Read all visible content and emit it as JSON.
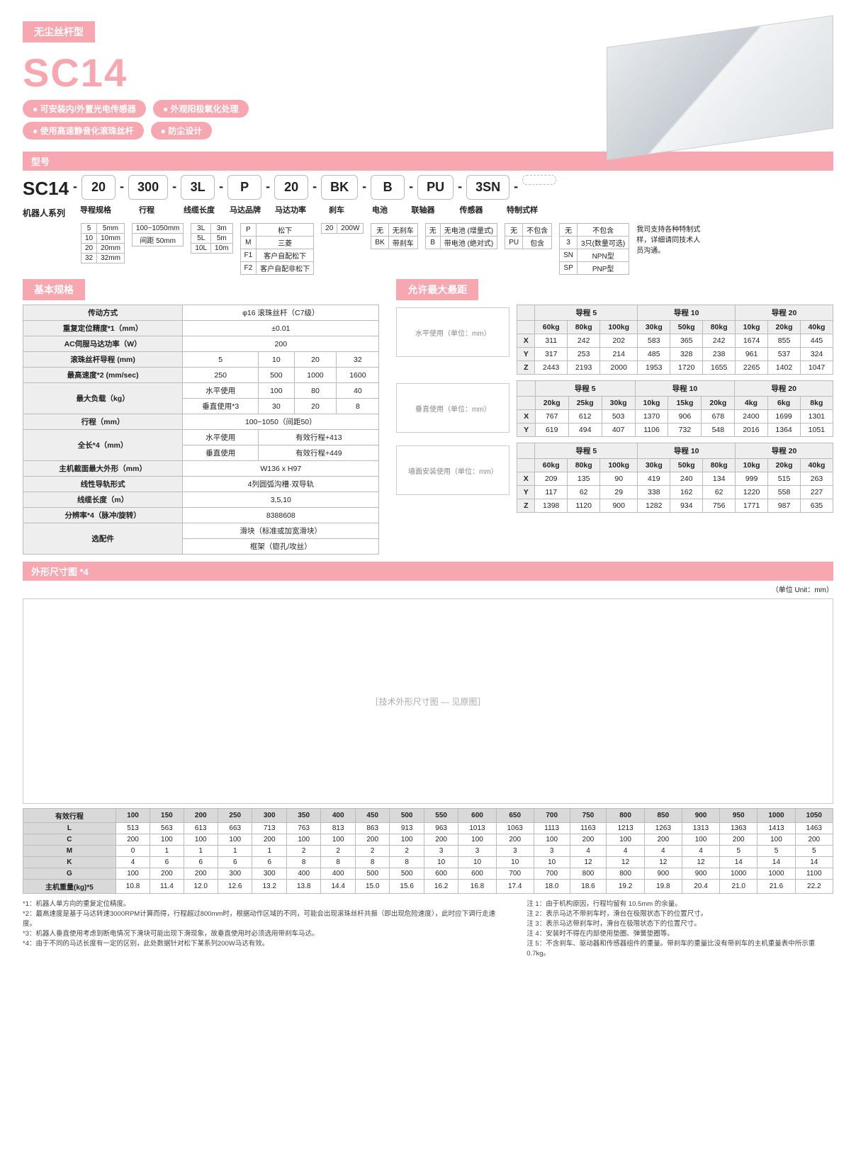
{
  "header": {
    "category": "无尘丝杆型",
    "model_big": "SC14",
    "model_section": "型号"
  },
  "features": [
    "可安装内/外置光电传感器",
    "外观阳极氧化处理",
    "使用高速静音化滚珠丝杆",
    "防尘设计"
  ],
  "model_boxes": [
    "20",
    "300",
    "3L",
    "P",
    "20",
    "BK",
    "B",
    "PU",
    "3SN",
    ""
  ],
  "model_series_label": "机器人系列",
  "model_labels": [
    "导程规格",
    "行程",
    "线缆长度",
    "马达品牌",
    "马达功率",
    "刹车",
    "电池",
    "联轴器",
    "传感器",
    "特制式样"
  ],
  "opt": {
    "lead": {
      "rows": [
        [
          "5",
          "5mm"
        ],
        [
          "10",
          "10mm"
        ],
        [
          "20",
          "20mm"
        ],
        [
          "32",
          "32mm"
        ]
      ]
    },
    "stroke": {
      "rows": [
        [
          "100~1050mm"
        ],
        [
          "间距 50mm"
        ]
      ]
    },
    "cable": {
      "rows": [
        [
          "3L",
          "3m"
        ],
        [
          "5L",
          "5m"
        ],
        [
          "10L",
          "10m"
        ]
      ]
    },
    "motor": {
      "rows": [
        [
          "P",
          "松下"
        ],
        [
          "M",
          "三菱"
        ],
        [
          "F1",
          "客户自配松下"
        ],
        [
          "F2",
          "客户自配非松下"
        ]
      ]
    },
    "power": {
      "rows": [
        [
          "20",
          "200W"
        ]
      ]
    },
    "brake": {
      "rows": [
        [
          "无",
          "无刹车"
        ],
        [
          "BK",
          "带刹车"
        ]
      ]
    },
    "batt": {
      "rows": [
        [
          "无",
          "无电池\n(增量式)"
        ],
        [
          "B",
          "带电池\n(绝对式)"
        ]
      ]
    },
    "coup": {
      "rows": [
        [
          "无",
          "不包含"
        ],
        [
          "PU",
          "包含"
        ]
      ]
    },
    "sensor": {
      "rows": [
        [
          "无",
          "不包含"
        ],
        [
          "3",
          "3只(数量可选)"
        ],
        [
          "SN",
          "NPN型"
        ],
        [
          "SP",
          "PNP型"
        ]
      ]
    },
    "note": "我司支持各种特制式样，详细请同技术人员沟通。"
  },
  "basic_title": "基本规格",
  "basic_spec": {
    "drive": {
      "k": "传动方式",
      "v": "φ16 滚珠丝杆（C7级）"
    },
    "repeat": {
      "k": "重复定位精度*1（mm）",
      "v": "±0.01"
    },
    "acpower": {
      "k": "AC伺服马达功率（W）",
      "v": "200"
    },
    "lead_row": {
      "k": "滚珠丝杆导程 (mm)",
      "v": [
        "5",
        "10",
        "20",
        "32"
      ]
    },
    "maxspeed": {
      "k": "最高速度*2 (mm/sec)",
      "v": [
        "250",
        "500",
        "1000",
        "1600"
      ]
    },
    "load_h": {
      "k": "最大负载（kg）",
      "sub": "水平使用",
      "v": [
        "100",
        "80",
        "40",
        "15"
      ]
    },
    "load_v": {
      "sub": "垂直使用*3",
      "v": [
        "30",
        "20",
        "8",
        "-"
      ]
    },
    "stroke_row": {
      "k": "行程（mm）",
      "v": "100~1050（间距50）"
    },
    "len_h": {
      "k": "全长*4（mm）",
      "sub": "水平使用",
      "v": "有效行程+413"
    },
    "len_v": {
      "sub": "垂直使用",
      "v": "有效行程+449"
    },
    "cross": {
      "k": "主机截面最大外形（mm）",
      "v": "W136 x H97"
    },
    "guide": {
      "k": "线性导轨形式",
      "v": "4列圆弧沟槽·双导轨"
    },
    "cablelen": {
      "k": "线缆长度（m）",
      "v": "3,5,10"
    },
    "res": {
      "k": "分辨率*4（脉冲/旋转）",
      "v": "8388608"
    },
    "opt1": {
      "k": "选配件",
      "v1": "滑块（标准或加宽滑块）",
      "v2": "框架（锪孔/攻丝）"
    }
  },
  "overhang_title": "允许最大悬距",
  "ovh_group_headers": [
    "导程 5",
    "导程 10",
    "导程 20"
  ],
  "ovh": {
    "h": {
      "caption": "水平使用（单位：mm）",
      "cols": [
        "60kg",
        "80kg",
        "100kg",
        "30kg",
        "50kg",
        "80kg",
        "10kg",
        "20kg",
        "40kg"
      ],
      "rows": [
        {
          "k": "X",
          "v": [
            "311",
            "242",
            "202",
            "583",
            "365",
            "242",
            "1674",
            "855",
            "445"
          ]
        },
        {
          "k": "Y",
          "v": [
            "317",
            "253",
            "214",
            "485",
            "328",
            "238",
            "961",
            "537",
            "324"
          ]
        },
        {
          "k": "Z",
          "v": [
            "2443",
            "2193",
            "2000",
            "1953",
            "1720",
            "1655",
            "2265",
            "1402",
            "1047"
          ]
        }
      ]
    },
    "v": {
      "caption": "垂直使用（单位：mm）",
      "cols": [
        "20kg",
        "25kg",
        "30kg",
        "10kg",
        "15kg",
        "20kg",
        "4kg",
        "6kg",
        "8kg"
      ],
      "rows": [
        {
          "k": "X",
          "v": [
            "767",
            "612",
            "503",
            "1370",
            "906",
            "678",
            "2400",
            "1699",
            "1301"
          ]
        },
        {
          "k": "Y",
          "v": [
            "619",
            "494",
            "407",
            "1106",
            "732",
            "548",
            "2016",
            "1364",
            "1051"
          ]
        }
      ]
    },
    "w": {
      "caption": "墙面安装使用（单位：mm）",
      "cols": [
        "60kg",
        "80kg",
        "100kg",
        "30kg",
        "50kg",
        "80kg",
        "10kg",
        "20kg",
        "40kg"
      ],
      "rows": [
        {
          "k": "X",
          "v": [
            "209",
            "135",
            "90",
            "419",
            "240",
            "134",
            "999",
            "515",
            "263"
          ]
        },
        {
          "k": "Y",
          "v": [
            "117",
            "62",
            "29",
            "338",
            "162",
            "62",
            "1220",
            "558",
            "227"
          ]
        },
        {
          "k": "Z",
          "v": [
            "1398",
            "1120",
            "900",
            "1282",
            "934",
            "756",
            "1771",
            "987",
            "635"
          ]
        }
      ]
    }
  },
  "dims_title": "外形尺寸图 *4",
  "dims_unit": "（单位 Unit：mm）",
  "dim_drawing_placeholder": "［技术外形尺寸图 — 见原图］",
  "dim_table": {
    "head": [
      "有效行程",
      "100",
      "150",
      "200",
      "250",
      "300",
      "350",
      "400",
      "450",
      "500",
      "550",
      "600",
      "650",
      "700",
      "750",
      "800",
      "850",
      "900",
      "950",
      "1000",
      "1050"
    ],
    "rows": [
      {
        "k": "L",
        "v": [
          "513",
          "563",
          "613",
          "663",
          "713",
          "763",
          "813",
          "863",
          "913",
          "963",
          "1013",
          "1063",
          "1113",
          "1163",
          "1213",
          "1263",
          "1313",
          "1363",
          "1413",
          "1463"
        ]
      },
      {
        "k": "C",
        "v": [
          "200",
          "100",
          "100",
          "100",
          "200",
          "100",
          "100",
          "200",
          "100",
          "200",
          "100",
          "200",
          "100",
          "200",
          "100",
          "200",
          "100",
          "200",
          "100",
          "200"
        ]
      },
      {
        "k": "M",
        "v": [
          "0",
          "1",
          "1",
          "1",
          "1",
          "2",
          "2",
          "2",
          "2",
          "3",
          "3",
          "3",
          "3",
          "4",
          "4",
          "4",
          "4",
          "5",
          "5",
          "5"
        ]
      },
      {
        "k": "K",
        "v": [
          "4",
          "6",
          "6",
          "6",
          "6",
          "8",
          "8",
          "8",
          "8",
          "10",
          "10",
          "10",
          "10",
          "12",
          "12",
          "12",
          "12",
          "14",
          "14",
          "14"
        ]
      },
      {
        "k": "G",
        "v": [
          "100",
          "200",
          "200",
          "300",
          "300",
          "400",
          "400",
          "500",
          "500",
          "600",
          "600",
          "700",
          "700",
          "800",
          "800",
          "900",
          "900",
          "1000",
          "1000",
          "1100"
        ]
      },
      {
        "k": "主机重量(kg)*5",
        "v": [
          "10.8",
          "11.4",
          "12.0",
          "12.6",
          "13.2",
          "13.8",
          "14.4",
          "15.0",
          "15.6",
          "16.2",
          "16.8",
          "17.4",
          "18.0",
          "18.6",
          "19.2",
          "19.8",
          "20.4",
          "21.0",
          "21.6",
          "22.2"
        ]
      }
    ]
  },
  "footnotes_left": [
    "*1：机器人单方向的重复定位精度。",
    "*2：最高速度是基于马达转速3000RPM计算而得，行程超过800mm时，根据动作区域的不同，可能会出现滚珠丝杆共振（即出现危险速度），此时应下调行走速度。",
    "*3：机器人垂直使用考虑到断电情况下滑块可能出现下滑现象，故垂直使用时必须选用带刹车马达。",
    "*4：由于不同的马达长度有一定的区别，此处数据针对松下某系列200W马达有效。"
  ],
  "footnotes_right": [
    "注 1：由于机构原因，行程均留有 10.5mm 的余量。",
    "注 2：表示马达不带刹车时，滑台在极限状态下的位置尺寸。",
    "注 3：表示马达带刹车时，滑台在极限状态下的位置尺寸。",
    "注 4：安装时不得在内部使用垫圈、弹簧垫圈等。",
    "注 5：不含刹车、驱动器和传感器组件的重量。带刹车的重量比没有带刹车的主机重量表中所示重 0.7kg。"
  ]
}
